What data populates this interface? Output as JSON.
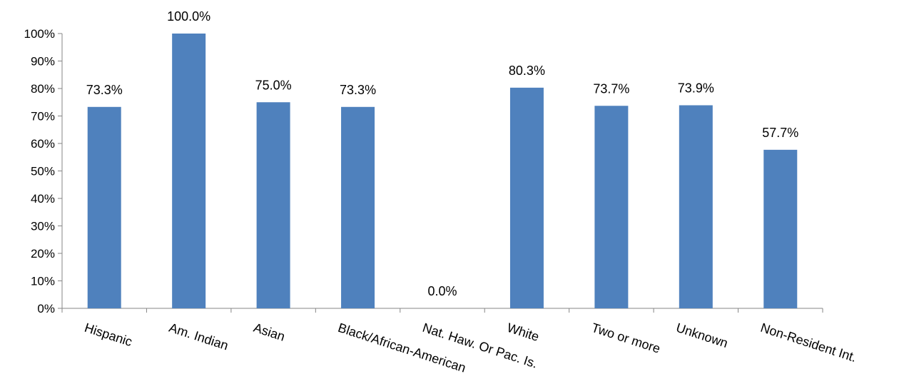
{
  "chart_data": {
    "type": "bar",
    "title": "",
    "xlabel": "",
    "ylabel": "",
    "categories": [
      "Hispanic",
      "Am. Indian",
      "Asian",
      "Black/African-American",
      "Nat. Haw. Or Pac. Is.",
      "White",
      "Two or more",
      "Unknown",
      "Non-Resident Int."
    ],
    "values": [
      73.3,
      100.0,
      75.0,
      73.3,
      0.0,
      80.3,
      73.7,
      73.9,
      57.7
    ],
    "data_labels": [
      "73.3%",
      "100.0%",
      "75.0%",
      "73.3%",
      "0.0%",
      "80.3%",
      "73.7%",
      "73.9%",
      "57.7%"
    ],
    "ylim": [
      0,
      100
    ],
    "yticks": [
      0,
      10,
      20,
      30,
      40,
      50,
      60,
      70,
      80,
      90,
      100
    ],
    "ytick_labels": [
      "0%",
      "10%",
      "20%",
      "30%",
      "40%",
      "50%",
      "60%",
      "70%",
      "80%",
      "90%",
      "100%"
    ],
    "grid": false,
    "legend": "none",
    "bar_color": "#4f81bd",
    "axis_color": "#868686"
  }
}
